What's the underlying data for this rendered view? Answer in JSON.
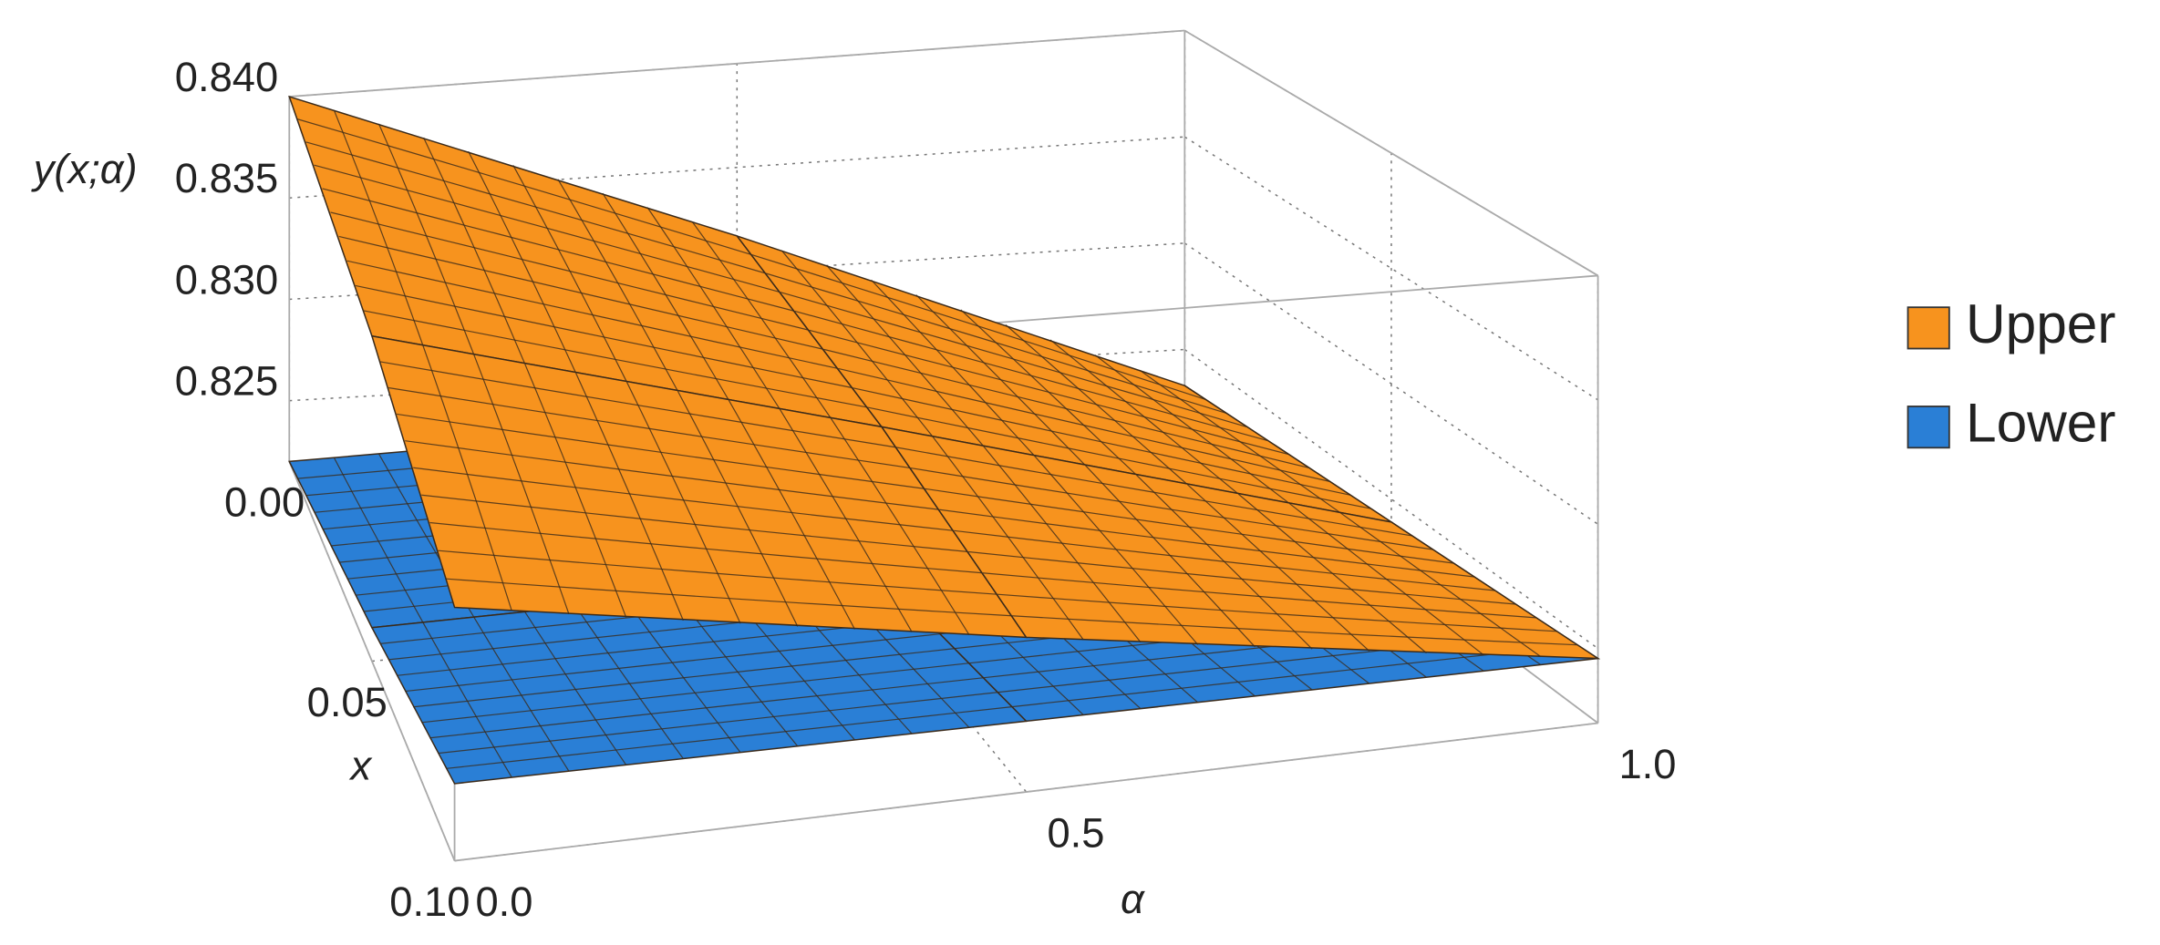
{
  "chart_data": {
    "type": "surface3d",
    "zlabel": "y(x;α)",
    "xlabel": "x",
    "ylabel": "α",
    "x": [
      0,
      0.05,
      0.1
    ],
    "y": [
      0,
      0.5,
      1
    ],
    "xlim": [
      0,
      0.1
    ],
    "ylim": [
      0,
      1
    ],
    "zlim": [
      0.822,
      0.84
    ],
    "xticks": [
      {
        "value": 0,
        "label": "0.00"
      },
      {
        "value": 0.05,
        "label": "0.05"
      },
      {
        "value": 0.1,
        "label": "0.10"
      }
    ],
    "yticks": [
      {
        "value": 0,
        "label": "0.0"
      },
      0.5,
      {
        "value": 1,
        "label": "1.0"
      }
    ],
    "zticks": [
      0.825,
      {
        "value": 0.83,
        "label": "0.830"
      },
      0.835,
      {
        "value": 0.84,
        "label": "0.840"
      }
    ],
    "grid": true,
    "legend_position": "right",
    "series": [
      {
        "name": "Upper",
        "color": "#f7931e",
        "values": [
          [
            0.84,
            0.8317,
            0.8233
          ],
          [
            0.8356,
            0.83,
            0.824
          ],
          [
            0.8312,
            0.8279,
            0.8246
          ]
        ]
      },
      {
        "name": "Lower",
        "color": "#2a7fd6",
        "values": [
          [
            0.822,
            0.8227,
            0.8233
          ],
          [
            0.8234,
            0.8237,
            0.824
          ],
          [
            0.8248,
            0.8247,
            0.8246
          ]
        ]
      }
    ]
  }
}
